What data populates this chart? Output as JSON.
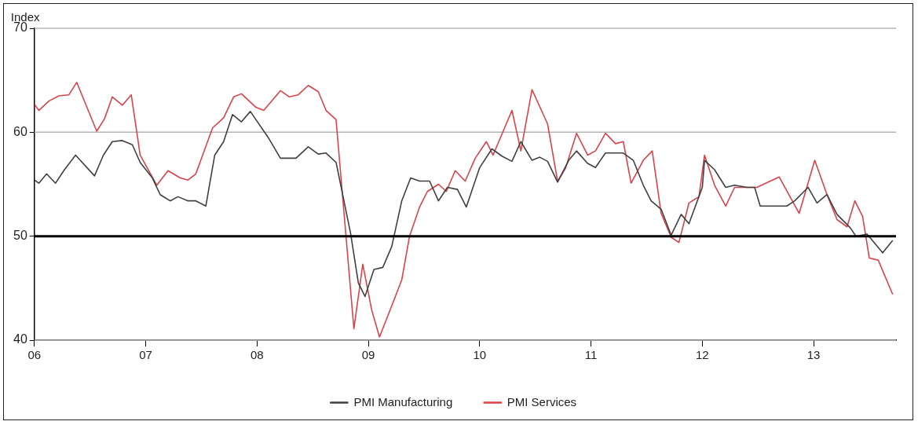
{
  "chart_data": {
    "type": "line",
    "ylabel": "Index",
    "legend": "bottom",
    "grid": "y",
    "marker": "none",
    "line_style": "solid",
    "xlim": [
      2006,
      2013.74
    ],
    "xticks": [
      {
        "value": 2006,
        "label": "06"
      },
      {
        "value": 2007,
        "label": "07"
      },
      {
        "value": 2008,
        "label": "08"
      },
      {
        "value": 2009,
        "label": "09"
      },
      {
        "value": 2010,
        "label": "10"
      },
      {
        "value": 2011,
        "label": "11"
      },
      {
        "value": 2012,
        "label": "12"
      },
      {
        "value": 2013,
        "label": "13"
      }
    ],
    "ylim": [
      40,
      70
    ],
    "yticks": [
      40,
      50,
      60,
      70
    ],
    "ref_lines": [
      {
        "axis": "y",
        "value": 50,
        "color": "#000000"
      }
    ],
    "series": [
      {
        "name": "PMI Manufacturing",
        "color": "#404040",
        "x": [
          2006.0,
          2006.04,
          2006.11,
          2006.19,
          2006.27,
          2006.37,
          2006.54,
          2006.62,
          2006.7,
          2006.79,
          2006.88,
          2006.95,
          2007.06,
          2007.13,
          2007.22,
          2007.29,
          2007.38,
          2007.45,
          2007.54,
          2007.62,
          2007.7,
          2007.78,
          2007.86,
          2007.94,
          2008.1,
          2008.21,
          2008.35,
          2008.46,
          2008.55,
          2008.62,
          2008.71,
          2008.84,
          2008.91,
          2008.97,
          2009.05,
          2009.13,
          2009.21,
          2009.3,
          2009.38,
          2009.46,
          2009.55,
          2009.63,
          2009.71,
          2009.8,
          2009.88,
          2010.0,
          2010.11,
          2010.2,
          2010.29,
          2010.37,
          2010.47,
          2010.54,
          2010.61,
          2010.7,
          2010.8,
          2010.87,
          2010.97,
          2011.04,
          2011.13,
          2011.29,
          2011.38,
          2011.47,
          2011.54,
          2011.63,
          2011.72,
          2011.81,
          2011.88,
          2012.0,
          2012.02,
          2012.11,
          2012.21,
          2012.29,
          2012.4,
          2012.47,
          2012.52,
          2012.76,
          2012.83,
          2012.95,
          2013.03,
          2013.12,
          2013.21,
          2013.33,
          2013.38,
          2013.48,
          2013.62,
          2013.71
        ],
        "values": [
          55.4,
          55.1,
          56.0,
          55.1,
          56.4,
          57.8,
          55.8,
          57.8,
          59.1,
          59.2,
          58.8,
          57.1,
          55.6,
          54.0,
          53.4,
          53.8,
          53.4,
          53.4,
          52.9,
          57.8,
          59.1,
          61.7,
          61.0,
          62.0,
          59.5,
          57.5,
          57.5,
          58.6,
          57.9,
          58.0,
          57.1,
          50.3,
          45.5,
          44.2,
          46.8,
          47.0,
          49.0,
          53.4,
          55.6,
          55.3,
          55.3,
          53.4,
          54.7,
          54.5,
          52.8,
          56.6,
          58.4,
          57.7,
          57.2,
          59.1,
          57.3,
          57.6,
          57.2,
          55.2,
          57.3,
          58.2,
          57.0,
          56.6,
          58.0,
          58.0,
          57.3,
          54.9,
          53.4,
          52.6,
          50.1,
          52.1,
          51.2,
          54.7,
          57.3,
          56.4,
          54.7,
          54.9,
          54.7,
          54.7,
          52.9,
          52.9,
          53.4,
          54.7,
          53.2,
          54.0,
          52.1,
          50.8,
          50.0,
          50.2,
          48.4,
          49.6
        ]
      },
      {
        "name": "PMI Services",
        "color": "#d9434a",
        "x": [
          2006.0,
          2006.04,
          2006.13,
          2006.22,
          2006.31,
          2006.38,
          2006.56,
          2006.63,
          2006.7,
          2006.79,
          2006.87,
          2006.95,
          2007.1,
          2007.2,
          2007.31,
          2007.38,
          2007.45,
          2007.6,
          2007.7,
          2007.79,
          2007.86,
          2007.99,
          2008.06,
          2008.21,
          2008.29,
          2008.37,
          2008.46,
          2008.55,
          2008.62,
          2008.71,
          2008.87,
          2008.95,
          2009.03,
          2009.1,
          2009.21,
          2009.3,
          2009.37,
          2009.46,
          2009.53,
          2009.63,
          2009.7,
          2009.78,
          2009.87,
          2009.96,
          2010.06,
          2010.12,
          2010.29,
          2010.37,
          2010.47,
          2010.61,
          2010.7,
          2010.77,
          2010.87,
          2010.97,
          2011.04,
          2011.13,
          2011.22,
          2011.29,
          2011.36,
          2011.47,
          2011.55,
          2011.63,
          2011.72,
          2011.79,
          2011.88,
          2011.97,
          2012.02,
          2012.11,
          2012.21,
          2012.29,
          2012.4,
          2012.49,
          2012.69,
          2012.87,
          2013.01,
          2013.12,
          2013.21,
          2013.3,
          2013.37,
          2013.44,
          2013.5,
          2013.58,
          2013.71
        ],
        "values": [
          62.7,
          62.1,
          63.0,
          63.5,
          63.6,
          64.8,
          60.1,
          61.3,
          63.4,
          62.6,
          63.6,
          57.8,
          54.9,
          56.3,
          55.6,
          55.4,
          56.0,
          60.4,
          61.4,
          63.4,
          63.7,
          62.4,
          62.1,
          64.0,
          63.4,
          63.6,
          64.5,
          63.9,
          62.1,
          61.2,
          41.1,
          47.3,
          42.9,
          40.3,
          43.3,
          45.8,
          50.0,
          52.8,
          54.3,
          55.0,
          54.3,
          56.3,
          55.3,
          57.5,
          59.1,
          57.8,
          62.1,
          58.2,
          64.1,
          60.8,
          55.3,
          56.5,
          59.9,
          57.8,
          58.2,
          59.9,
          58.9,
          59.1,
          55.1,
          57.3,
          58.2,
          52.2,
          49.9,
          49.4,
          53.2,
          53.8,
          57.8,
          54.9,
          52.9,
          54.7,
          54.7,
          54.7,
          55.7,
          52.2,
          57.3,
          54.0,
          51.6,
          50.9,
          53.4,
          51.9,
          47.9,
          47.7,
          44.4
        ]
      }
    ]
  }
}
